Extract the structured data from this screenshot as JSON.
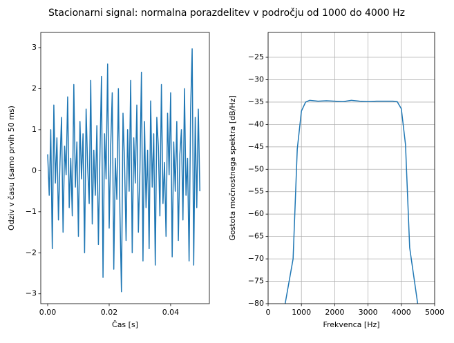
{
  "title": "Stacionarni signal: normalna porazdelitev v področju od 1000 do 4000 Hz",
  "chart_data": [
    {
      "type": "line",
      "xlabel": "Čas [s]",
      "ylabel": "Odziv v času (samo prvih 50 ms)",
      "grid": false,
      "xlim": [
        -0.00225,
        0.0526
      ],
      "ylim": [
        -3.24,
        3.37
      ],
      "xticks": [
        {
          "value": 0,
          "label": "0.00"
        },
        {
          "value": 0.02,
          "label": "0.02"
        },
        {
          "value": 0.04,
          "label": "0.04"
        }
      ],
      "yticks": [
        {
          "value": -3,
          "label": "−3"
        },
        {
          "value": -2,
          "label": "−2"
        },
        {
          "value": -1,
          "label": "−1"
        },
        0,
        1,
        2,
        3
      ],
      "x": [
        0,
        0.0005,
        0.001,
        0.0015,
        0.002,
        0.0025,
        0.003,
        0.0035,
        0.004,
        0.0045,
        0.005,
        0.0055,
        0.006,
        0.0065,
        0.007,
        0.0075,
        0.008,
        0.0085,
        0.009,
        0.0095,
        0.01,
        0.0105,
        0.011,
        0.0115,
        0.012,
        0.0125,
        0.013,
        0.0135,
        0.014,
        0.0145,
        0.015,
        0.0155,
        0.016,
        0.0165,
        0.017,
        0.0175,
        0.018,
        0.0185,
        0.019,
        0.0195,
        0.02,
        0.0205,
        0.021,
        0.0215,
        0.022,
        0.0225,
        0.023,
        0.0235,
        0.024,
        0.0245,
        0.025,
        0.0255,
        0.026,
        0.0265,
        0.027,
        0.0275,
        0.028,
        0.0285,
        0.029,
        0.0295,
        0.03,
        0.0305,
        0.031,
        0.0315,
        0.032,
        0.0325,
        0.033,
        0.0335,
        0.034,
        0.0345,
        0.035,
        0.0355,
        0.036,
        0.0365,
        0.037,
        0.0375,
        0.038,
        0.0385,
        0.039,
        0.0395,
        0.04,
        0.0405,
        0.041,
        0.0415,
        0.042,
        0.0425,
        0.043,
        0.0435,
        0.044,
        0.0445,
        0.045,
        0.0455,
        0.046,
        0.0465,
        0.047,
        0.0475,
        0.048,
        0.0485,
        0.049,
        0.0495
      ],
      "series": [
        {
          "color": "#1f77b4",
          "values": [
            0.4,
            -0.6,
            1.0,
            -1.9,
            1.6,
            -0.3,
            0.8,
            -1.2,
            0.2,
            1.3,
            -1.5,
            0.6,
            -0.1,
            1.8,
            -0.9,
            0.3,
            -1.1,
            2.1,
            -0.4,
            0.7,
            -1.6,
            1.2,
            -0.2,
            0.9,
            -2.0,
            1.5,
            0.1,
            -0.8,
            2.2,
            -1.3,
            0.5,
            -0.6,
            1.1,
            -1.8,
            0.4,
            2.3,
            -2.6,
            0.9,
            -0.2,
            2.6,
            -1.4,
            0.6,
            1.9,
            -2.4,
            0.3,
            -0.7,
            2.0,
            -1.0,
            -2.95,
            1.4,
            0.2,
            -1.7,
            1.0,
            -0.5,
            2.2,
            -2.0,
            0.8,
            -0.3,
            1.6,
            -1.5,
            0.0,
            2.4,
            -2.2,
            1.2,
            -0.9,
            0.5,
            -1.9,
            1.7,
            -0.4,
            0.9,
            -2.3,
            1.3,
            0.6,
            -1.1,
            2.1,
            -0.8,
            0.2,
            -1.6,
            1.4,
            -0.1,
            1.9,
            -2.1,
            0.7,
            -0.5,
            1.2,
            -1.7,
            0.4,
            1.0,
            -1.2,
            2.0,
            -0.6,
            0.3,
            -2.2,
            1.5,
            2.97,
            -2.3,
            1.3,
            -0.9,
            1.5,
            -0.5
          ]
        }
      ]
    },
    {
      "type": "line",
      "xlabel": "Frekvenca [Hz]",
      "ylabel": "Gostota močnostnega spektra [dB/Hz]",
      "grid": true,
      "xlim": [
        0,
        5000
      ],
      "ylim": [
        -80,
        -19.45
      ],
      "xticks": [
        0,
        1000,
        2000,
        3000,
        4000,
        5000
      ],
      "yticks": [
        {
          "value": -80,
          "label": "−80"
        },
        {
          "value": -75,
          "label": "−75"
        },
        {
          "value": -70,
          "label": "−70"
        },
        {
          "value": -65,
          "label": "−65"
        },
        {
          "value": -60,
          "label": "−60"
        },
        {
          "value": -55,
          "label": "−55"
        },
        {
          "value": -50,
          "label": "−50"
        },
        {
          "value": -45,
          "label": "−45"
        },
        {
          "value": -40,
          "label": "−40"
        },
        {
          "value": -35,
          "label": "−35"
        },
        {
          "value": -30,
          "label": "−30"
        },
        {
          "value": -25,
          "label": "−25"
        }
      ],
      "x": [
        500,
        750,
        875,
        1000,
        1125,
        1250,
        1500,
        1750,
        2000,
        2250,
        2500,
        2750,
        3000,
        3250,
        3500,
        3750,
        3875,
        4000,
        4125,
        4250,
        4500
      ],
      "series": [
        {
          "color": "#1f77b4",
          "values": [
            -80.5,
            -70,
            -45.5,
            -37,
            -35,
            -34.6,
            -34.8,
            -34.7,
            -34.8,
            -34.9,
            -34.6,
            -34.8,
            -34.9,
            -34.8,
            -34.8,
            -34.8,
            -34.9,
            -36.5,
            -44.5,
            -67.5,
            -80.5
          ]
        }
      ]
    }
  ]
}
